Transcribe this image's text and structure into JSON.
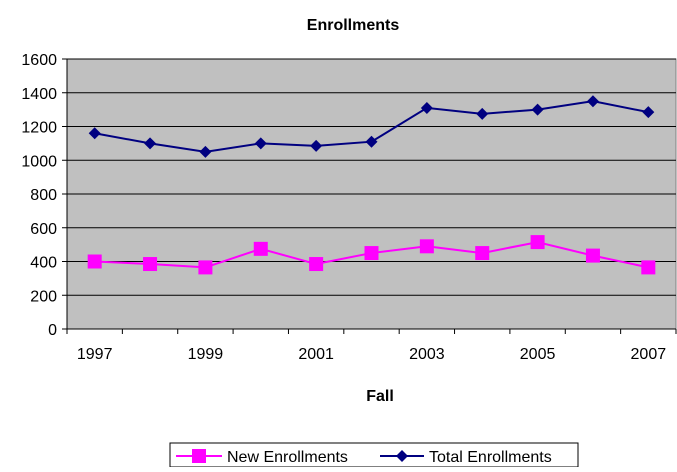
{
  "chart_data": {
    "type": "line",
    "title": "Enrollments",
    "xlabel": "Fall",
    "ylabel": "",
    "x": [
      1997,
      1998,
      1999,
      2000,
      2001,
      2002,
      2003,
      2004,
      2005,
      2006,
      2007
    ],
    "x_tick_labels": [
      "1997",
      "1999",
      "2001",
      "2003",
      "2005",
      "2007"
    ],
    "ylim": [
      0,
      1600
    ],
    "y_ticks": [
      0,
      200,
      400,
      600,
      800,
      1000,
      1200,
      1400,
      1600
    ],
    "grid": true,
    "legend_position": "bottom",
    "plot_background": "#c0c0c0",
    "series": [
      {
        "name": "New Enrollments",
        "color": "#ff00ff",
        "marker": "square",
        "values": [
          400,
          385,
          365,
          475,
          385,
          450,
          490,
          450,
          515,
          435,
          365
        ]
      },
      {
        "name": "Total Enrollments",
        "color": "#000080",
        "marker": "diamond",
        "values": [
          1160,
          1100,
          1050,
          1100,
          1085,
          1110,
          1310,
          1275,
          1300,
          1350,
          1285
        ]
      }
    ]
  }
}
